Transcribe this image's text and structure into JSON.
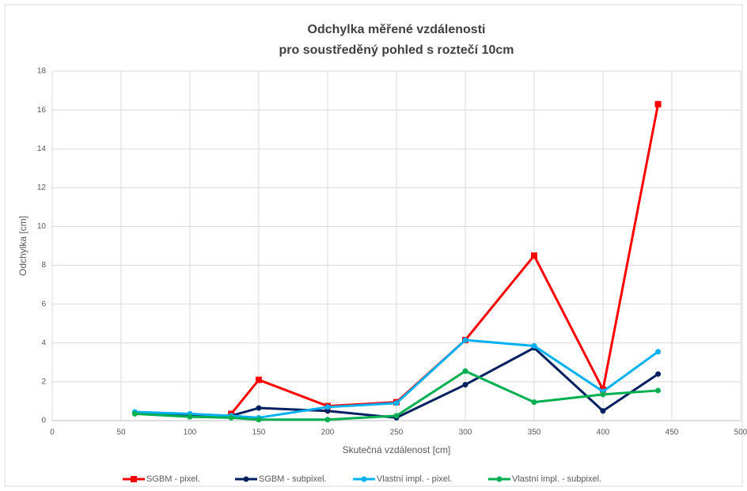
{
  "chart_data": {
    "type": "line",
    "title": "Odchylka měřené vzdálenosti",
    "subtitle": "pro soustředěný pohled s roztečí 10cm",
    "x_label": "Skutečná vzdálenost [cm]",
    "y_label": "Odchylka [cm]",
    "x": [
      60,
      100,
      130,
      150,
      200,
      250,
      300,
      350,
      400,
      440
    ],
    "series": [
      {
        "name": "SGBM - pixel.",
        "color": "#ff0000",
        "marker": "square",
        "values": [
          null,
          null,
          0.35,
          2.1,
          0.75,
          0.95,
          4.15,
          8.5,
          1.6,
          16.3
        ]
      },
      {
        "name": "SGBM - subpixel.",
        "color": "#002060",
        "marker": "circle",
        "values": [
          0.4,
          0.3,
          0.25,
          0.65,
          0.5,
          0.15,
          1.85,
          3.75,
          0.5,
          2.4
        ]
      },
      {
        "name": "Vlastní impl. - pixel.",
        "color": "#00b0f0",
        "marker": "circle",
        "values": [
          0.45,
          0.35,
          0.25,
          0.15,
          0.7,
          0.9,
          4.15,
          3.85,
          1.5,
          3.55
        ]
      },
      {
        "name": "Vlastní impl. - subpixel.",
        "color": "#00b050",
        "marker": "circle",
        "values": [
          0.35,
          0.2,
          0.15,
          0.05,
          0.05,
          0.25,
          2.55,
          0.95,
          1.35,
          1.55
        ]
      }
    ],
    "xlim": [
      0,
      500
    ],
    "xticks": [
      0,
      50,
      100,
      150,
      200,
      250,
      300,
      350,
      400,
      450,
      500
    ],
    "ylim": [
      0,
      18
    ],
    "yticks": [
      0,
      2,
      4,
      6,
      8,
      10,
      12,
      14,
      16,
      18
    ],
    "grid": true,
    "legend": "bottom"
  }
}
